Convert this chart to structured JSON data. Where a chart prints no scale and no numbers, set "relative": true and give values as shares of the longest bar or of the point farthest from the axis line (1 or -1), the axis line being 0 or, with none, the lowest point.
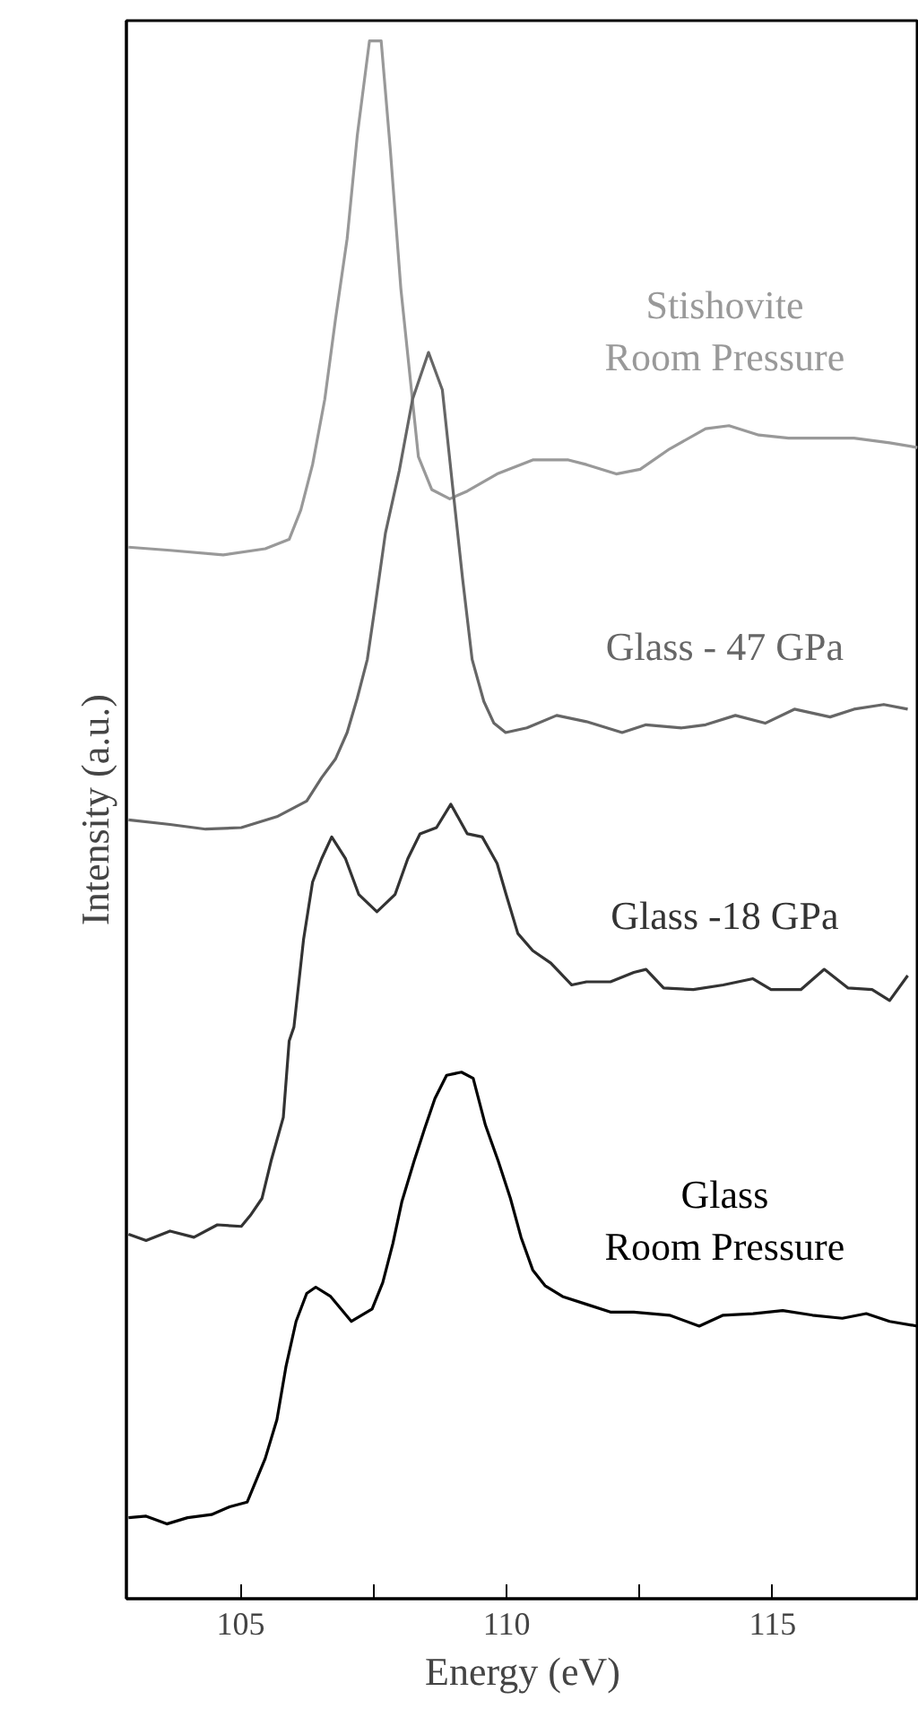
{
  "chart_data": {
    "type": "line",
    "relative": true,
    "xlabel": "Energy (eV)",
    "ylabel": "Intensity (a.u.)",
    "xlim": [
      102.85,
      117.75
    ],
    "xticks": [
      105,
      {
        "value": 107.5,
        "label": null
      },
      110,
      {
        "value": 112.5,
        "label": null
      },
      115
    ],
    "grid": false,
    "legend": false,
    "marker": "none",
    "line_style": "solid",
    "series": [
      {
        "name": "Stishovite\nRoom Pressure",
        "color": "#999999",
        "x": [
          102.89,
          103.67,
          104.67,
          105.46,
          105.91,
          106.13,
          106.35,
          106.58,
          106.78,
          107.0,
          107.19,
          107.42,
          107.64,
          107.81,
          108.01,
          108.34,
          108.59,
          108.93,
          109.26,
          109.82,
          110.49,
          111.16,
          111.5,
          112.06,
          112.51,
          113.06,
          113.74,
          114.18,
          114.74,
          115.3,
          115.97,
          116.53,
          117.2,
          117.72
        ],
        "values": [
          0.675,
          0.673,
          0.67,
          0.674,
          0.68,
          0.699,
          0.728,
          0.77,
          0.821,
          0.873,
          0.939,
          1.0,
          1.0,
          0.931,
          0.841,
          0.733,
          0.712,
          0.706,
          0.711,
          0.722,
          0.731,
          0.731,
          0.728,
          0.722,
          0.725,
          0.738,
          0.751,
          0.753,
          0.747,
          0.745,
          0.745,
          0.745,
          0.742,
          0.739
        ]
      },
      {
        "name": "Glass - 47 GPa",
        "color": "#666666",
        "x": [
          102.89,
          103.67,
          104.34,
          105.01,
          105.68,
          106.24,
          106.52,
          106.78,
          107.0,
          107.19,
          107.38,
          107.53,
          107.72,
          107.98,
          108.23,
          108.53,
          108.79,
          108.98,
          109.17,
          109.35,
          109.57,
          109.76,
          109.98,
          110.38,
          110.94,
          111.5,
          112.17,
          112.62,
          113.29,
          113.74,
          114.3,
          114.86,
          115.41,
          116.08,
          116.53,
          117.09,
          117.54
        ],
        "values": [
          0.5,
          0.497,
          0.494,
          0.495,
          0.502,
          0.512,
          0.527,
          0.539,
          0.556,
          0.578,
          0.603,
          0.638,
          0.684,
          0.724,
          0.77,
          0.8,
          0.776,
          0.715,
          0.655,
          0.603,
          0.576,
          0.562,
          0.556,
          0.559,
          0.567,
          0.563,
          0.556,
          0.561,
          0.559,
          0.561,
          0.567,
          0.562,
          0.571,
          0.566,
          0.571,
          0.574,
          0.571
        ]
      },
      {
        "name": "Glass -18 GPa",
        "color": "#333333",
        "x": [
          102.89,
          103.22,
          103.67,
          104.12,
          104.56,
          105.01,
          105.18,
          105.4,
          105.57,
          105.8,
          105.91,
          106.0,
          106.18,
          106.35,
          106.52,
          106.71,
          106.97,
          107.22,
          107.56,
          107.9,
          108.14,
          108.37,
          108.68,
          108.95,
          109.26,
          109.54,
          109.82,
          109.99,
          110.21,
          110.49,
          110.83,
          111.22,
          111.5,
          111.95,
          112.39,
          112.62,
          112.95,
          113.51,
          114.07,
          114.63,
          114.97,
          115.53,
          115.97,
          116.42,
          116.87,
          117.2,
          117.54
        ],
        "values": [
          0.234,
          0.23,
          0.236,
          0.232,
          0.24,
          0.239,
          0.246,
          0.257,
          0.281,
          0.309,
          0.358,
          0.367,
          0.423,
          0.46,
          0.475,
          0.489,
          0.475,
          0.452,
          0.441,
          0.452,
          0.475,
          0.491,
          0.495,
          0.51,
          0.491,
          0.489,
          0.472,
          0.452,
          0.427,
          0.416,
          0.408,
          0.394,
          0.396,
          0.396,
          0.402,
          0.404,
          0.392,
          0.391,
          0.394,
          0.398,
          0.391,
          0.391,
          0.404,
          0.392,
          0.391,
          0.384,
          0.4
        ]
      },
      {
        "name": "Glass\nRoom Pressure",
        "color": "#000000",
        "x": [
          102.89,
          103.22,
          103.61,
          104.0,
          104.45,
          104.79,
          105.12,
          105.23,
          105.46,
          105.68,
          105.85,
          106.04,
          106.24,
          106.41,
          106.69,
          107.08,
          107.47,
          107.67,
          107.86,
          108.03,
          108.26,
          108.46,
          108.65,
          108.87,
          109.15,
          109.37,
          109.6,
          109.84,
          110.07,
          110.27,
          110.49,
          110.72,
          111.05,
          111.5,
          111.95,
          112.39,
          113.06,
          113.62,
          114.07,
          114.63,
          115.19,
          115.75,
          116.31,
          116.76,
          117.2,
          117.72
        ],
        "values": [
          0.052,
          0.053,
          0.048,
          0.052,
          0.054,
          0.059,
          0.062,
          0.071,
          0.09,
          0.115,
          0.149,
          0.178,
          0.196,
          0.2,
          0.194,
          0.178,
          0.186,
          0.203,
          0.228,
          0.255,
          0.281,
          0.302,
          0.321,
          0.336,
          0.338,
          0.334,
          0.304,
          0.281,
          0.257,
          0.232,
          0.211,
          0.201,
          0.194,
          0.189,
          0.184,
          0.184,
          0.182,
          0.175,
          0.182,
          0.183,
          0.185,
          0.182,
          0.18,
          0.183,
          0.178,
          0.175
        ]
      }
    ]
  }
}
